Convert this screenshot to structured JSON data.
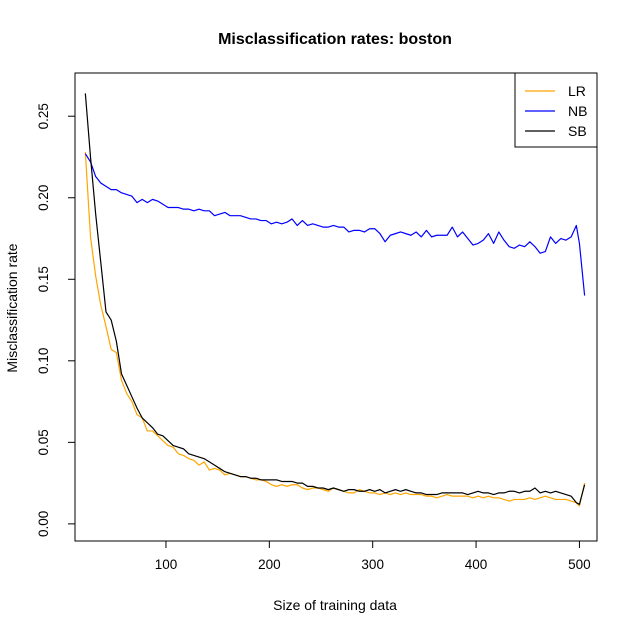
{
  "chart_data": {
    "type": "line",
    "title": "Misclassification rates: boston",
    "xlabel": "Size of training data",
    "ylabel": "Misclassification rate",
    "xlim": [
      12,
      517
    ],
    "ylim": [
      -0.0105,
      0.2765
    ],
    "x_ticks": [
      100,
      200,
      300,
      400,
      500
    ],
    "y_ticks": [
      0.0,
      0.05,
      0.1,
      0.15,
      0.2,
      0.25
    ],
    "x_tick_labels": [
      "100",
      "200",
      "300",
      "400",
      "500"
    ],
    "y_tick_labels": [
      "0.00",
      "0.05",
      "0.10",
      "0.15",
      "0.20",
      "0.25"
    ],
    "grid": false,
    "legend_position": "top-right",
    "series": [
      {
        "name": "LR",
        "color": "#FFA500",
        "points": [
          [
            22,
            0.228
          ],
          [
            27,
            0.176
          ],
          [
            32,
            0.152
          ],
          [
            37,
            0.134
          ],
          [
            42,
            0.121
          ],
          [
            47,
            0.107
          ],
          [
            52,
            0.105
          ],
          [
            57,
            0.088
          ],
          [
            62,
            0.08
          ],
          [
            67,
            0.075
          ],
          [
            72,
            0.067
          ],
          [
            77,
            0.065
          ],
          [
            82,
            0.057
          ],
          [
            87,
            0.057
          ],
          [
            92,
            0.054
          ],
          [
            97,
            0.051
          ],
          [
            102,
            0.048
          ],
          [
            107,
            0.047
          ],
          [
            112,
            0.043
          ],
          [
            117,
            0.042
          ],
          [
            122,
            0.04
          ],
          [
            127,
            0.039
          ],
          [
            132,
            0.036
          ],
          [
            137,
            0.038
          ],
          [
            142,
            0.033
          ],
          [
            147,
            0.034
          ],
          [
            152,
            0.033
          ],
          [
            157,
            0.03
          ],
          [
            162,
            0.031
          ],
          [
            167,
            0.03
          ],
          [
            172,
            0.029
          ],
          [
            177,
            0.029
          ],
          [
            182,
            0.028
          ],
          [
            187,
            0.027
          ],
          [
            192,
            0.027
          ],
          [
            197,
            0.026
          ],
          [
            202,
            0.024
          ],
          [
            207,
            0.023
          ],
          [
            212,
            0.024
          ],
          [
            217,
            0.023
          ],
          [
            222,
            0.024
          ],
          [
            227,
            0.024
          ],
          [
            232,
            0.022
          ],
          [
            237,
            0.021
          ],
          [
            242,
            0.022
          ],
          [
            247,
            0.022
          ],
          [
            252,
            0.021
          ],
          [
            257,
            0.02
          ],
          [
            262,
            0.022
          ],
          [
            267,
            0.021
          ],
          [
            272,
            0.02
          ],
          [
            277,
            0.019
          ],
          [
            282,
            0.019
          ],
          [
            287,
            0.021
          ],
          [
            292,
            0.02
          ],
          [
            297,
            0.019
          ],
          [
            302,
            0.019
          ],
          [
            307,
            0.018
          ],
          [
            312,
            0.019
          ],
          [
            317,
            0.018
          ],
          [
            322,
            0.019
          ],
          [
            327,
            0.018
          ],
          [
            332,
            0.019
          ],
          [
            337,
            0.018
          ],
          [
            342,
            0.018
          ],
          [
            347,
            0.018
          ],
          [
            352,
            0.017
          ],
          [
            357,
            0.017
          ],
          [
            362,
            0.016
          ],
          [
            367,
            0.017
          ],
          [
            372,
            0.018
          ],
          [
            377,
            0.017
          ],
          [
            382,
            0.017
          ],
          [
            387,
            0.017
          ],
          [
            392,
            0.017
          ],
          [
            397,
            0.016
          ],
          [
            402,
            0.017
          ],
          [
            407,
            0.016
          ],
          [
            412,
            0.017
          ],
          [
            417,
            0.016
          ],
          [
            422,
            0.016
          ],
          [
            427,
            0.015
          ],
          [
            432,
            0.014
          ],
          [
            437,
            0.015
          ],
          [
            442,
            0.015
          ],
          [
            447,
            0.015
          ],
          [
            452,
            0.016
          ],
          [
            457,
            0.015
          ],
          [
            462,
            0.016
          ],
          [
            467,
            0.017
          ],
          [
            472,
            0.016
          ],
          [
            477,
            0.015
          ],
          [
            482,
            0.015
          ],
          [
            487,
            0.015
          ],
          [
            492,
            0.014
          ],
          [
            497,
            0.013
          ],
          [
            500,
            0.011
          ],
          [
            505,
            0.025
          ]
        ]
      },
      {
        "name": "NB",
        "color": "#0000FF",
        "points": [
          [
            22,
            0.227
          ],
          [
            27,
            0.222
          ],
          [
            32,
            0.213
          ],
          [
            37,
            0.209
          ],
          [
            42,
            0.207
          ],
          [
            47,
            0.205
          ],
          [
            52,
            0.205
          ],
          [
            57,
            0.203
          ],
          [
            62,
            0.202
          ],
          [
            67,
            0.201
          ],
          [
            72,
            0.197
          ],
          [
            77,
            0.199
          ],
          [
            82,
            0.197
          ],
          [
            87,
            0.199
          ],
          [
            92,
            0.198
          ],
          [
            97,
            0.196
          ],
          [
            102,
            0.194
          ],
          [
            107,
            0.194
          ],
          [
            112,
            0.194
          ],
          [
            117,
            0.193
          ],
          [
            122,
            0.193
          ],
          [
            127,
            0.192
          ],
          [
            132,
            0.193
          ],
          [
            137,
            0.192
          ],
          [
            142,
            0.192
          ],
          [
            147,
            0.189
          ],
          [
            152,
            0.19
          ],
          [
            157,
            0.191
          ],
          [
            162,
            0.189
          ],
          [
            167,
            0.189
          ],
          [
            172,
            0.189
          ],
          [
            177,
            0.188
          ],
          [
            182,
            0.187
          ],
          [
            187,
            0.187
          ],
          [
            192,
            0.186
          ],
          [
            197,
            0.186
          ],
          [
            202,
            0.184
          ],
          [
            207,
            0.185
          ],
          [
            212,
            0.184
          ],
          [
            217,
            0.185
          ],
          [
            222,
            0.187
          ],
          [
            227,
            0.183
          ],
          [
            232,
            0.186
          ],
          [
            237,
            0.183
          ],
          [
            242,
            0.184
          ],
          [
            247,
            0.183
          ],
          [
            252,
            0.182
          ],
          [
            257,
            0.182
          ],
          [
            262,
            0.183
          ],
          [
            267,
            0.182
          ],
          [
            272,
            0.182
          ],
          [
            277,
            0.179
          ],
          [
            282,
            0.18
          ],
          [
            287,
            0.18
          ],
          [
            292,
            0.179
          ],
          [
            297,
            0.181
          ],
          [
            302,
            0.181
          ],
          [
            307,
            0.178
          ],
          [
            312,
            0.173
          ],
          [
            317,
            0.177
          ],
          [
            322,
            0.178
          ],
          [
            327,
            0.179
          ],
          [
            332,
            0.178
          ],
          [
            337,
            0.177
          ],
          [
            342,
            0.179
          ],
          [
            347,
            0.176
          ],
          [
            352,
            0.18
          ],
          [
            357,
            0.176
          ],
          [
            362,
            0.177
          ],
          [
            367,
            0.177
          ],
          [
            372,
            0.177
          ],
          [
            377,
            0.182
          ],
          [
            382,
            0.176
          ],
          [
            387,
            0.179
          ],
          [
            392,
            0.175
          ],
          [
            397,
            0.171
          ],
          [
            402,
            0.172
          ],
          [
            407,
            0.174
          ],
          [
            412,
            0.178
          ],
          [
            417,
            0.172
          ],
          [
            422,
            0.179
          ],
          [
            427,
            0.174
          ],
          [
            432,
            0.17
          ],
          [
            437,
            0.169
          ],
          [
            442,
            0.171
          ],
          [
            447,
            0.17
          ],
          [
            452,
            0.173
          ],
          [
            457,
            0.17
          ],
          [
            462,
            0.166
          ],
          [
            467,
            0.167
          ],
          [
            472,
            0.176
          ],
          [
            477,
            0.172
          ],
          [
            482,
            0.175
          ],
          [
            487,
            0.174
          ],
          [
            492,
            0.176
          ],
          [
            497,
            0.183
          ],
          [
            500,
            0.172
          ],
          [
            505,
            0.14
          ]
        ]
      },
      {
        "name": "SB",
        "color": "#000000",
        "points": [
          [
            22,
            0.264
          ],
          [
            27,
            0.225
          ],
          [
            32,
            0.19
          ],
          [
            37,
            0.16
          ],
          [
            42,
            0.13
          ],
          [
            47,
            0.125
          ],
          [
            52,
            0.112
          ],
          [
            57,
            0.092
          ],
          [
            62,
            0.085
          ],
          [
            67,
            0.078
          ],
          [
            72,
            0.071
          ],
          [
            77,
            0.065
          ],
          [
            82,
            0.062
          ],
          [
            87,
            0.059
          ],
          [
            92,
            0.055
          ],
          [
            97,
            0.054
          ],
          [
            102,
            0.051
          ],
          [
            107,
            0.048
          ],
          [
            112,
            0.047
          ],
          [
            117,
            0.046
          ],
          [
            122,
            0.043
          ],
          [
            127,
            0.042
          ],
          [
            132,
            0.041
          ],
          [
            137,
            0.04
          ],
          [
            142,
            0.038
          ],
          [
            147,
            0.036
          ],
          [
            152,
            0.034
          ],
          [
            157,
            0.032
          ],
          [
            162,
            0.031
          ],
          [
            167,
            0.03
          ],
          [
            172,
            0.029
          ],
          [
            177,
            0.029
          ],
          [
            182,
            0.028
          ],
          [
            187,
            0.028
          ],
          [
            192,
            0.027
          ],
          [
            197,
            0.027
          ],
          [
            202,
            0.027
          ],
          [
            207,
            0.027
          ],
          [
            212,
            0.026
          ],
          [
            217,
            0.026
          ],
          [
            222,
            0.026
          ],
          [
            227,
            0.025
          ],
          [
            232,
            0.025
          ],
          [
            237,
            0.023
          ],
          [
            242,
            0.023
          ],
          [
            247,
            0.022
          ],
          [
            252,
            0.022
          ],
          [
            257,
            0.021
          ],
          [
            262,
            0.022
          ],
          [
            267,
            0.021
          ],
          [
            272,
            0.02
          ],
          [
            277,
            0.021
          ],
          [
            282,
            0.021
          ],
          [
            287,
            0.02
          ],
          [
            292,
            0.02
          ],
          [
            297,
            0.021
          ],
          [
            302,
            0.02
          ],
          [
            307,
            0.021
          ],
          [
            312,
            0.019
          ],
          [
            317,
            0.02
          ],
          [
            322,
            0.021
          ],
          [
            327,
            0.02
          ],
          [
            332,
            0.021
          ],
          [
            337,
            0.02
          ],
          [
            342,
            0.019
          ],
          [
            347,
            0.019
          ],
          [
            352,
            0.018
          ],
          [
            357,
            0.018
          ],
          [
            362,
            0.018
          ],
          [
            367,
            0.019
          ],
          [
            372,
            0.019
          ],
          [
            377,
            0.019
          ],
          [
            382,
            0.019
          ],
          [
            387,
            0.019
          ],
          [
            392,
            0.018
          ],
          [
            397,
            0.019
          ],
          [
            402,
            0.02
          ],
          [
            407,
            0.019
          ],
          [
            412,
            0.019
          ],
          [
            417,
            0.018
          ],
          [
            422,
            0.019
          ],
          [
            427,
            0.019
          ],
          [
            432,
            0.02
          ],
          [
            437,
            0.02
          ],
          [
            442,
            0.019
          ],
          [
            447,
            0.02
          ],
          [
            452,
            0.02
          ],
          [
            457,
            0.022
          ],
          [
            462,
            0.019
          ],
          [
            467,
            0.02
          ],
          [
            472,
            0.019
          ],
          [
            477,
            0.02
          ],
          [
            482,
            0.019
          ],
          [
            487,
            0.018
          ],
          [
            492,
            0.017
          ],
          [
            497,
            0.013
          ],
          [
            500,
            0.012
          ],
          [
            505,
            0.024
          ]
        ]
      }
    ]
  }
}
